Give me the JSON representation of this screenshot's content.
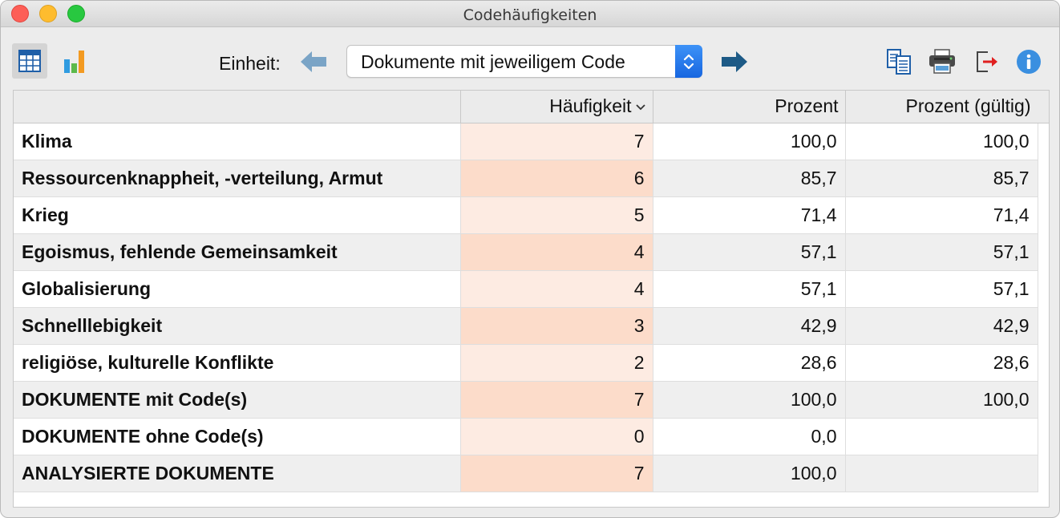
{
  "window": {
    "title": "Codehäufigkeiten"
  },
  "toolbar": {
    "unit_label": "Einheit:",
    "unit_value": "Dokumente mit jeweiligem Code",
    "icons": [
      "table-view-icon",
      "chart-view-icon",
      "arrow-left-icon",
      "arrow-right-icon",
      "copy-icon",
      "print-icon",
      "export-icon",
      "info-icon"
    ]
  },
  "table": {
    "headers": [
      "",
      "Häufigkeit",
      "Prozent",
      "Prozent (gültig)"
    ],
    "rows": [
      {
        "label": "Klima",
        "freq": "7",
        "pct": "100,0",
        "valid": "100,0"
      },
      {
        "label": "Ressourcenknappheit, -verteilung, Armut",
        "freq": "6",
        "pct": "85,7",
        "valid": "85,7"
      },
      {
        "label": "Krieg",
        "freq": "5",
        "pct": "71,4",
        "valid": "71,4"
      },
      {
        "label": "Egoismus, fehlende Gemeinsamkeit",
        "freq": "4",
        "pct": "57,1",
        "valid": "57,1"
      },
      {
        "label": "Globalisierung",
        "freq": "4",
        "pct": "57,1",
        "valid": "57,1"
      },
      {
        "label": "Schnelllebigkeit",
        "freq": "3",
        "pct": "42,9",
        "valid": "42,9"
      },
      {
        "label": "religiöse, kulturelle Konflikte",
        "freq": "2",
        "pct": "28,6",
        "valid": "28,6"
      },
      {
        "label": "DOKUMENTE mit Code(s)",
        "freq": "7",
        "pct": "100,0",
        "valid": "100,0"
      },
      {
        "label": "DOKUMENTE ohne Code(s)",
        "freq": "0",
        "pct": "0,0",
        "valid": ""
      },
      {
        "label": "ANALYSIERTE DOKUMENTE",
        "freq": "7",
        "pct": "100,0",
        "valid": ""
      }
    ]
  },
  "colors": {
    "highlight_odd": "#fdebe2",
    "highlight_even": "#fcdcca",
    "accent_blue": "#1766e0",
    "arrow_right": "#1d5a86",
    "arrow_left": "#7aa4c6"
  }
}
